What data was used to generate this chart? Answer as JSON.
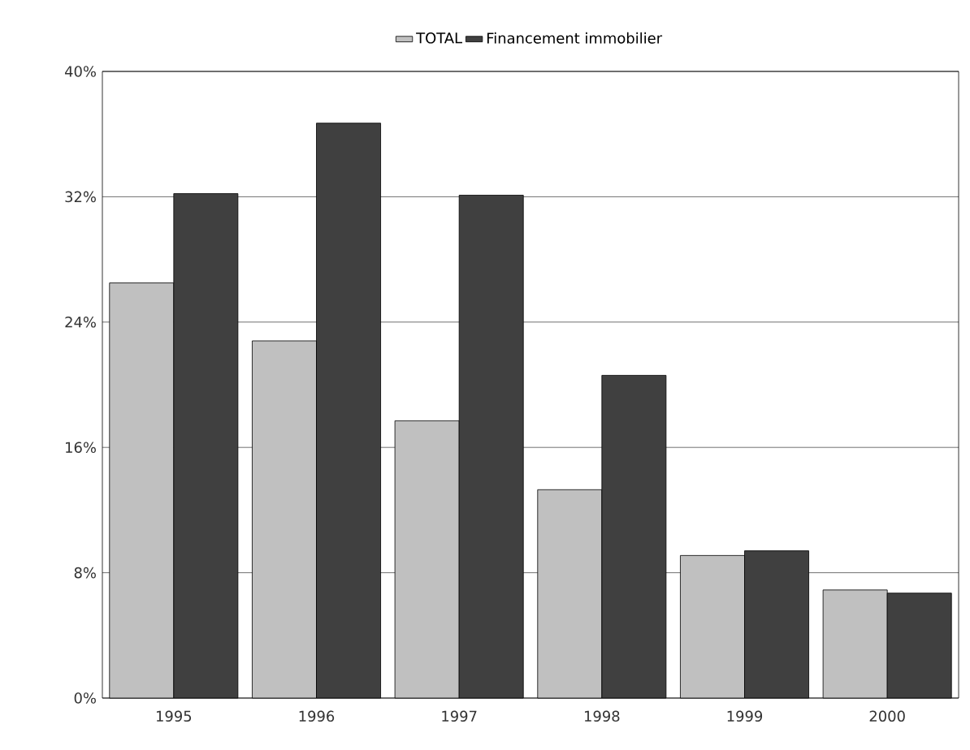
{
  "chart_data": {
    "type": "bar",
    "categories": [
      "1995",
      "1996",
      "1997",
      "1998",
      "1999",
      "2000"
    ],
    "series": [
      {
        "name": "TOTAL",
        "color": "#c0c0c0",
        "values": [
          26.5,
          22.8,
          17.7,
          13.3,
          9.1,
          6.9
        ]
      },
      {
        "name": "Financement   immobilier",
        "color": "#404040",
        "values": [
          32.2,
          36.7,
          32.1,
          20.6,
          9.4,
          6.7
        ]
      }
    ],
    "ylim": [
      0,
      40
    ],
    "yticks": [
      {
        "value": 0,
        "label": "0%"
      },
      {
        "value": 8,
        "label": "8%"
      },
      {
        "value": 16,
        "label": "16%"
      },
      {
        "value": 24,
        "label": "24%"
      },
      {
        "value": 32,
        "label": "32%"
      },
      {
        "value": 40,
        "label": "40%"
      }
    ],
    "grid": "y",
    "legend": "top"
  }
}
